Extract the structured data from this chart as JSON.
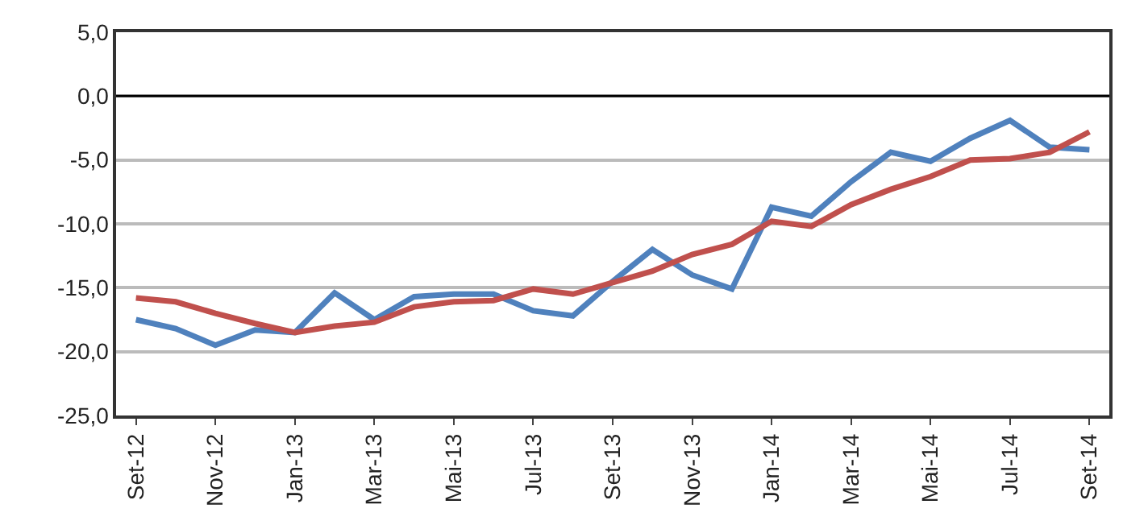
{
  "chart_data": {
    "type": "line",
    "categories": [
      "Set-12",
      null,
      "Nov-12",
      null,
      "Jan-13",
      null,
      "Mar-13",
      null,
      "Mai-13",
      null,
      "Jul-13",
      null,
      "Set-13",
      null,
      "Nov-13",
      null,
      "Jan-14",
      null,
      "Mar-14",
      null,
      "Mai-14",
      null,
      "Jul-14",
      null,
      "Set-14"
    ],
    "series": [
      {
        "color": "#4f81bd",
        "values": [
          -17.5,
          -18.2,
          -19.5,
          -18.3,
          -18.5,
          -15.4,
          -17.5,
          -15.7,
          -15.5,
          -15.5,
          -16.8,
          -17.2,
          -14.5,
          -12.0,
          -14.0,
          -15.1,
          -8.7,
          -9.4,
          -6.7,
          -4.4,
          -5.1,
          -3.3,
          -1.9,
          -4.0,
          -4.2
        ]
      },
      {
        "color": "#c0504d",
        "values": [
          -15.8,
          -16.1,
          -17.0,
          -17.8,
          -18.5,
          -18.0,
          -17.7,
          -16.5,
          -16.1,
          -16.0,
          -15.1,
          -15.5,
          -14.6,
          -13.7,
          -12.4,
          -11.6,
          -9.8,
          -10.2,
          -8.5,
          -7.3,
          -6.3,
          -5.0,
          -4.9,
          -4.4,
          -2.8
        ]
      }
    ],
    "ylim": [
      -25,
      5
    ],
    "yticks": [
      {
        "value": -25,
        "label": "-25,0"
      },
      {
        "value": -20,
        "label": "-20,0"
      },
      {
        "value": -15,
        "label": "-15,0"
      },
      {
        "value": -10,
        "label": "-10,0"
      },
      {
        "value": -5,
        "label": "-5,0"
      },
      {
        "value": 0,
        "label": "0,0"
      },
      {
        "value": 5,
        "label": "5,0"
      }
    ],
    "grid": "y",
    "ref_lines": [
      {
        "axis": "y",
        "value": 0,
        "color": "#000000"
      }
    ],
    "marker": "none",
    "line_style": "solid"
  }
}
